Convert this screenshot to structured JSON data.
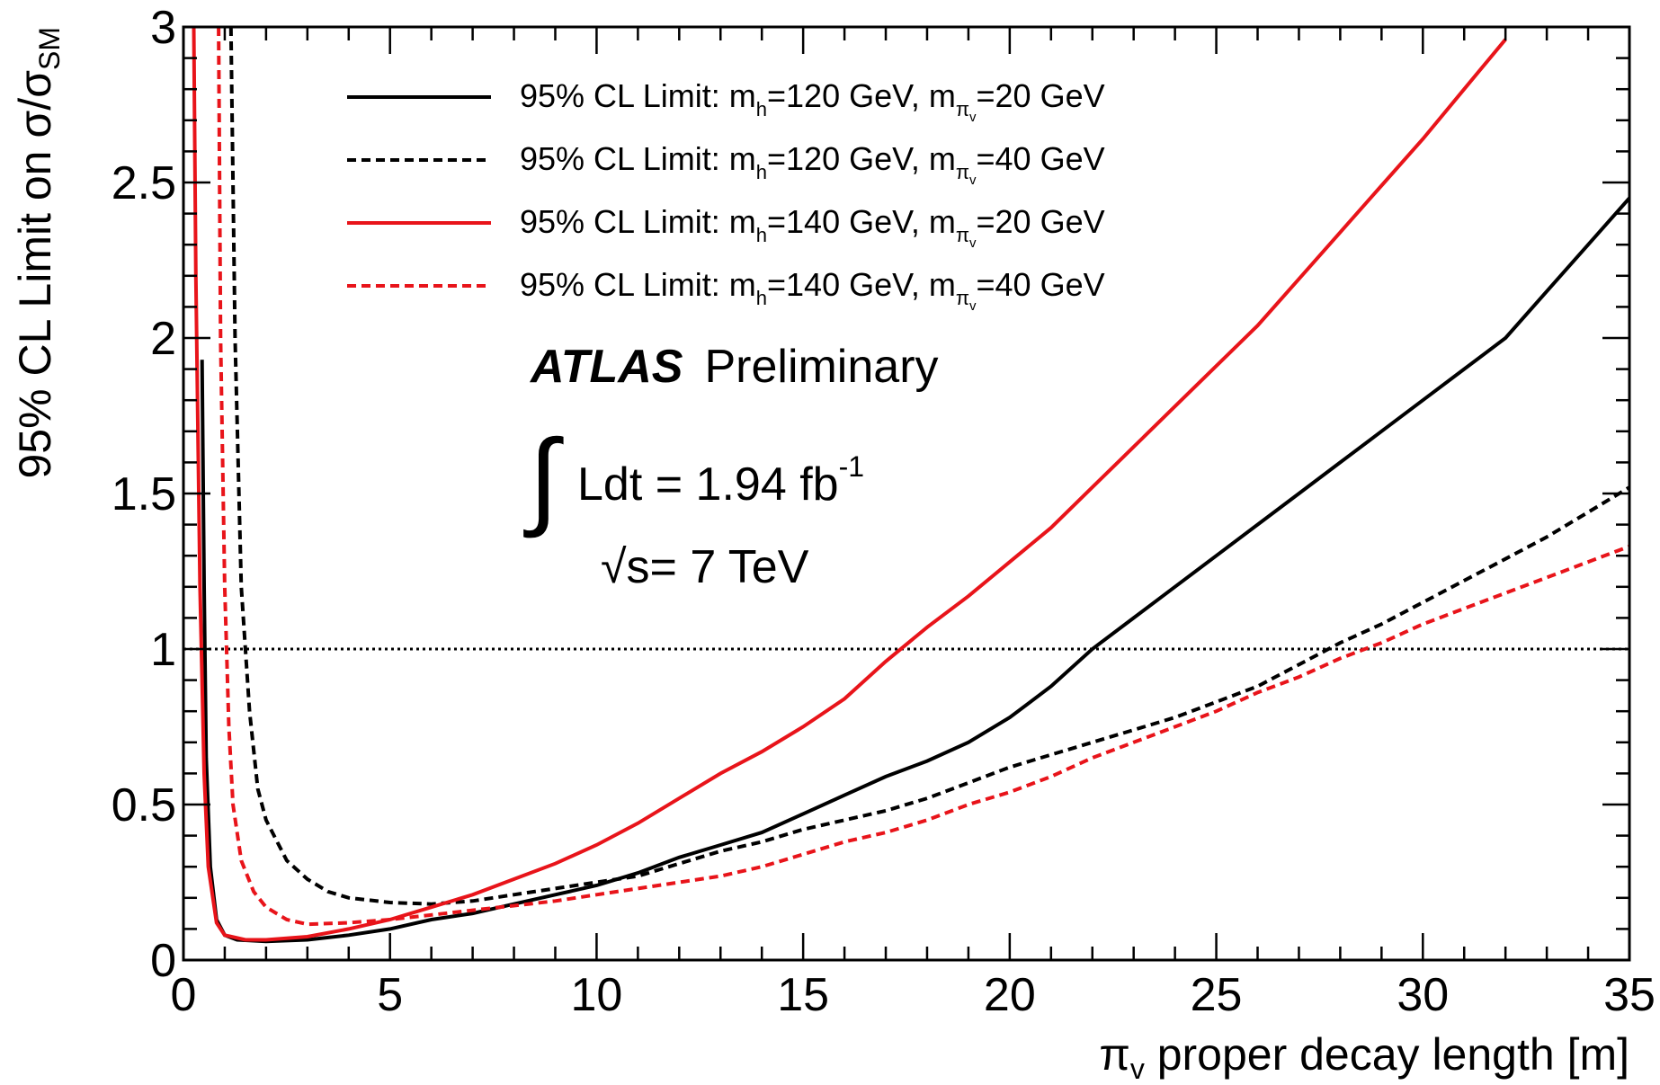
{
  "chart_data": {
    "type": "line",
    "xlabel": {
      "main": "π",
      "sub": "v",
      "rest": " proper decay length [m]"
    },
    "ylabel": {
      "main": "95% CL Limit on σ/σ",
      "sub": "SM"
    },
    "xlim": [
      0,
      35
    ],
    "ylim": [
      0,
      3
    ],
    "x_ticks": [
      "0",
      "5",
      "10",
      "15",
      "20",
      "25",
      "30",
      "35"
    ],
    "y_ticks": [
      "0",
      "0.5",
      "1",
      "1.5",
      "2",
      "2.5",
      "3"
    ],
    "x_tick_values": [
      0,
      5,
      10,
      15,
      20,
      25,
      30,
      35
    ],
    "y_tick_values": [
      0,
      0.5,
      1,
      1.5,
      2,
      2.5,
      3
    ],
    "reference_line": {
      "y": 1,
      "style": "dotted",
      "color": "#000000"
    },
    "annotations": {
      "atlas": "ATLAS",
      "preliminary": "Preliminary",
      "lumi_text": "Ldt = 1.94 fb",
      "lumi_sup": "-1",
      "energy_text": "s= 7 TeV",
      "integral_symbol": "∫",
      "sqrt_symbol": "√"
    },
    "legend_position": "top",
    "series": [
      {
        "name": "95% CL Limit: m_h=120 GeV, m_πv=20 GeV",
        "legend": {
          "prefix": "95% CL Limit: m",
          "sub1": "h",
          "mid": "=120 GeV, m",
          "sub2": "π",
          "sub2sub": "v",
          "suffix": "=20 GeV"
        },
        "color": "#000000",
        "dash": "solid",
        "points": [
          [
            0.45,
            1.93
          ],
          [
            0.5,
            1.2
          ],
          [
            0.55,
            0.65
          ],
          [
            0.65,
            0.3
          ],
          [
            0.8,
            0.13
          ],
          [
            1.0,
            0.08
          ],
          [
            1.3,
            0.065
          ],
          [
            2.0,
            0.06
          ],
          [
            3.0,
            0.065
          ],
          [
            4.0,
            0.08
          ],
          [
            5.0,
            0.1
          ],
          [
            6.0,
            0.13
          ],
          [
            7.0,
            0.15
          ],
          [
            8.0,
            0.18
          ],
          [
            9.0,
            0.21
          ],
          [
            10.0,
            0.24
          ],
          [
            11.0,
            0.28
          ],
          [
            12.0,
            0.33
          ],
          [
            13.0,
            0.37
          ],
          [
            14.0,
            0.41
          ],
          [
            15.0,
            0.47
          ],
          [
            16.0,
            0.53
          ],
          [
            17.0,
            0.59
          ],
          [
            18.0,
            0.64
          ],
          [
            19.0,
            0.7
          ],
          [
            20.0,
            0.78
          ],
          [
            21.0,
            0.88
          ],
          [
            22.0,
            1.0
          ],
          [
            23.0,
            1.1
          ],
          [
            24.0,
            1.2
          ],
          [
            25.0,
            1.3
          ],
          [
            26.0,
            1.4
          ],
          [
            27.0,
            1.5
          ],
          [
            28.0,
            1.6
          ],
          [
            29.0,
            1.7
          ],
          [
            30.0,
            1.8
          ],
          [
            31.0,
            1.9
          ],
          [
            32.0,
            2.0
          ],
          [
            33.0,
            2.15
          ],
          [
            34.0,
            2.3
          ],
          [
            35.0,
            2.45
          ]
        ]
      },
      {
        "name": "95% CL Limit: m_h=120 GeV, m_πv=40 GeV",
        "legend": {
          "prefix": "95% CL Limit: m",
          "sub1": "h",
          "mid": "=120 GeV, m",
          "sub2": "π",
          "sub2sub": "v",
          "suffix": "=40 GeV"
        },
        "color": "#000000",
        "dash": "dashed",
        "points": [
          [
            1.15,
            3.0
          ],
          [
            1.25,
            2.0
          ],
          [
            1.4,
            1.2
          ],
          [
            1.6,
            0.8
          ],
          [
            1.8,
            0.55
          ],
          [
            2.0,
            0.45
          ],
          [
            2.5,
            0.32
          ],
          [
            3.0,
            0.26
          ],
          [
            3.5,
            0.22
          ],
          [
            4.0,
            0.2
          ],
          [
            5.0,
            0.185
          ],
          [
            6.0,
            0.18
          ],
          [
            7.0,
            0.19
          ],
          [
            8.0,
            0.21
          ],
          [
            9.0,
            0.23
          ],
          [
            10.0,
            0.25
          ],
          [
            11.0,
            0.27
          ],
          [
            12.0,
            0.31
          ],
          [
            13.0,
            0.35
          ],
          [
            14.0,
            0.38
          ],
          [
            15.0,
            0.42
          ],
          [
            16.0,
            0.45
          ],
          [
            17.0,
            0.48
          ],
          [
            18.0,
            0.52
          ],
          [
            19.0,
            0.57
          ],
          [
            20.0,
            0.62
          ],
          [
            21.0,
            0.66
          ],
          [
            22.0,
            0.7
          ],
          [
            23.0,
            0.74
          ],
          [
            24.0,
            0.78
          ],
          [
            25.0,
            0.83
          ],
          [
            26.0,
            0.88
          ],
          [
            27.0,
            0.95
          ],
          [
            28.0,
            1.02
          ],
          [
            29.0,
            1.08
          ],
          [
            30.0,
            1.15
          ],
          [
            31.0,
            1.22
          ],
          [
            32.0,
            1.29
          ],
          [
            33.0,
            1.36
          ],
          [
            34.0,
            1.44
          ],
          [
            35.0,
            1.52
          ]
        ]
      },
      {
        "name": "95% CL Limit: m_h=140 GeV, m_πv=20 GeV",
        "legend": {
          "prefix": "95% CL Limit: m",
          "sub1": "h",
          "mid": "=140 GeV, m",
          "sub2": "π",
          "sub2sub": "v",
          "suffix": "=20 GeV"
        },
        "color": "#e8141a",
        "dash": "solid",
        "points": [
          [
            0.25,
            3.0
          ],
          [
            0.3,
            2.2
          ],
          [
            0.4,
            1.2
          ],
          [
            0.5,
            0.6
          ],
          [
            0.6,
            0.3
          ],
          [
            0.8,
            0.12
          ],
          [
            1.0,
            0.08
          ],
          [
            1.5,
            0.065
          ],
          [
            2.0,
            0.065
          ],
          [
            3.0,
            0.075
          ],
          [
            4.0,
            0.1
          ],
          [
            5.0,
            0.13
          ],
          [
            6.0,
            0.17
          ],
          [
            7.0,
            0.21
          ],
          [
            8.0,
            0.26
          ],
          [
            9.0,
            0.31
          ],
          [
            10.0,
            0.37
          ],
          [
            11.0,
            0.44
          ],
          [
            12.0,
            0.52
          ],
          [
            13.0,
            0.6
          ],
          [
            14.0,
            0.67
          ],
          [
            15.0,
            0.75
          ],
          [
            16.0,
            0.84
          ],
          [
            17.0,
            0.96
          ],
          [
            18.0,
            1.07
          ],
          [
            19.0,
            1.17
          ],
          [
            20.0,
            1.28
          ],
          [
            21.0,
            1.39
          ],
          [
            22.0,
            1.52
          ],
          [
            23.0,
            1.65
          ],
          [
            24.0,
            1.78
          ],
          [
            25.0,
            1.91
          ],
          [
            26.0,
            2.04
          ],
          [
            27.0,
            2.19
          ],
          [
            28.0,
            2.34
          ],
          [
            29.0,
            2.49
          ],
          [
            30.0,
            2.64
          ],
          [
            31.0,
            2.8
          ],
          [
            32.0,
            2.96
          ]
        ]
      },
      {
        "name": "95% CL Limit: m_h=140 GeV, m_πv=40 GeV",
        "legend": {
          "prefix": "95% CL Limit: m",
          "sub1": "h",
          "mid": "=140 GeV, m",
          "sub2": "π",
          "sub2sub": "v",
          "suffix": "=40 GeV"
        },
        "color": "#e8141a",
        "dash": "dashed",
        "points": [
          [
            0.85,
            3.0
          ],
          [
            0.9,
            2.0
          ],
          [
            1.0,
            1.2
          ],
          [
            1.1,
            0.75
          ],
          [
            1.2,
            0.5
          ],
          [
            1.4,
            0.32
          ],
          [
            1.7,
            0.22
          ],
          [
            2.0,
            0.17
          ],
          [
            2.5,
            0.13
          ],
          [
            3.0,
            0.115
          ],
          [
            4.0,
            0.12
          ],
          [
            5.0,
            0.13
          ],
          [
            6.0,
            0.145
          ],
          [
            7.0,
            0.16
          ],
          [
            8.0,
            0.175
          ],
          [
            9.0,
            0.19
          ],
          [
            10.0,
            0.21
          ],
          [
            11.0,
            0.23
          ],
          [
            12.0,
            0.25
          ],
          [
            13.0,
            0.27
          ],
          [
            14.0,
            0.3
          ],
          [
            15.0,
            0.34
          ],
          [
            16.0,
            0.38
          ],
          [
            17.0,
            0.41
          ],
          [
            18.0,
            0.45
          ],
          [
            19.0,
            0.5
          ],
          [
            20.0,
            0.54
          ],
          [
            21.0,
            0.59
          ],
          [
            22.0,
            0.65
          ],
          [
            23.0,
            0.7
          ],
          [
            24.0,
            0.75
          ],
          [
            25.0,
            0.8
          ],
          [
            26.0,
            0.86
          ],
          [
            27.0,
            0.91
          ],
          [
            28.0,
            0.97
          ],
          [
            29.0,
            1.02
          ],
          [
            30.0,
            1.08
          ],
          [
            31.0,
            1.13
          ],
          [
            32.0,
            1.18
          ],
          [
            33.0,
            1.23
          ],
          [
            34.0,
            1.28
          ],
          [
            35.0,
            1.33
          ]
        ]
      }
    ]
  }
}
